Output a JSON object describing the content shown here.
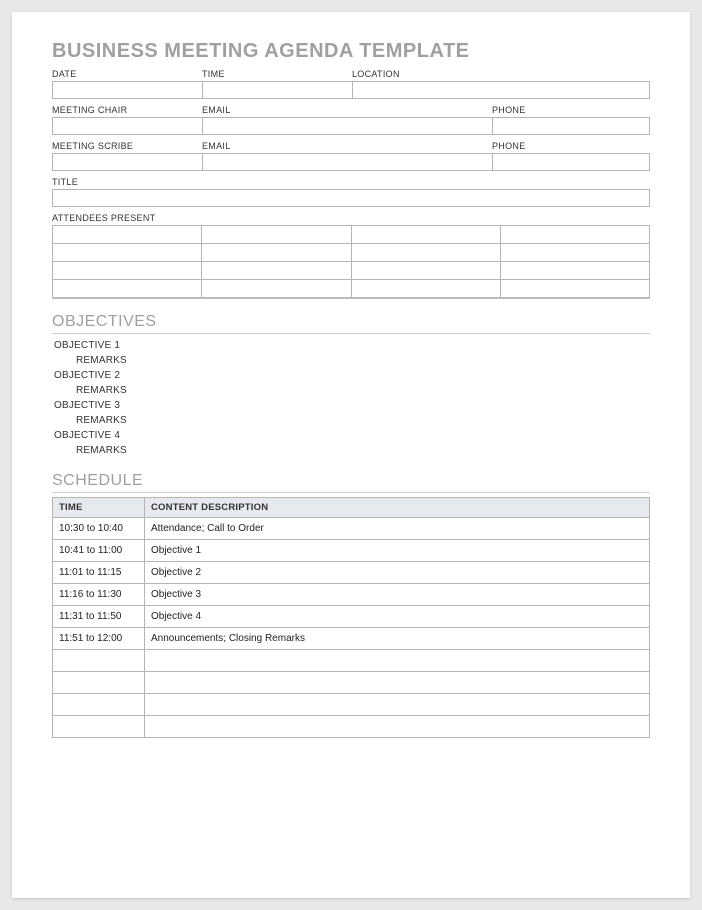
{
  "title": "BUSINESS MEETING AGENDA TEMPLATE",
  "info": {
    "row1": {
      "date_label": "DATE",
      "time_label": "TIME",
      "location_label": "LOCATION"
    },
    "chair": {
      "chair_label": "MEETING CHAIR",
      "email_label": "EMAIL",
      "phone_label": "PHONE"
    },
    "scribe": {
      "scribe_label": "MEETING SCRIBE",
      "email_label": "EMAIL",
      "phone_label": "PHONE"
    },
    "title_label": "TITLE",
    "attendees_label": "ATTENDEES PRESENT"
  },
  "attendees_grid": {
    "rows": 4,
    "cols": 4
  },
  "sections": {
    "objectives_heading": "OBJECTIVES",
    "schedule_heading": "SCHEDULE"
  },
  "objectives": [
    {
      "label": "OBJECTIVE 1",
      "remarks": "REMARKS"
    },
    {
      "label": "OBJECTIVE 2",
      "remarks": "REMARKS"
    },
    {
      "label": "OBJECTIVE 3",
      "remarks": "REMARKS"
    },
    {
      "label": "OBJECTIVE 4",
      "remarks": "REMARKS"
    }
  ],
  "schedule": {
    "columns": {
      "time": "TIME",
      "content": "CONTENT DESCRIPTION"
    },
    "header_bg": "#e6eaef",
    "border_color": "#b5b5b5",
    "rows": [
      {
        "time": "10:30 to 10:40",
        "content": "Attendance; Call to Order"
      },
      {
        "time": "10:41 to 11:00",
        "content": "Objective 1"
      },
      {
        "time": "11:01 to 11:15",
        "content": "Objective 2"
      },
      {
        "time": "11:16 to 11:30",
        "content": "Objective 3"
      },
      {
        "time": "11:31 to 11:50",
        "content": "Objective 4"
      },
      {
        "time": "11:51 to 12:00",
        "content": "Announcements; Closing Remarks"
      },
      {
        "time": "",
        "content": ""
      },
      {
        "time": "",
        "content": ""
      },
      {
        "time": "",
        "content": ""
      },
      {
        "time": "",
        "content": ""
      }
    ]
  },
  "colors": {
    "page_bg": "#ffffff",
    "outer_bg": "#e8e8e8",
    "heading_gray": "#a0a0a0",
    "border": "#b5b5b5",
    "rule": "#cfcfcf",
    "text": "#333333"
  }
}
